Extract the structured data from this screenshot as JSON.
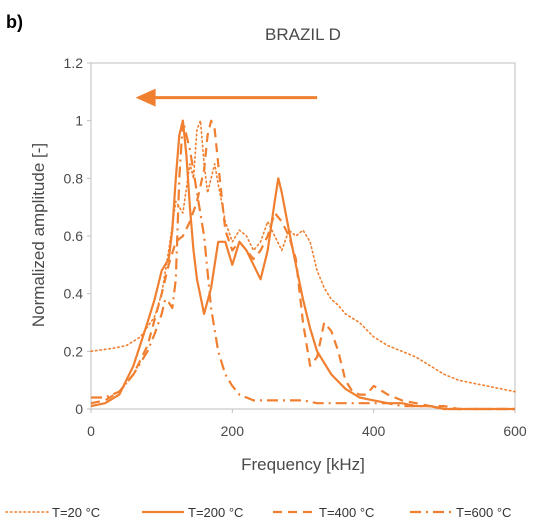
{
  "panel_label": "b)",
  "chart_data": {
    "type": "line",
    "title": "BRAZIL D",
    "xlabel": "Frequency [kHz]",
    "ylabel": "Normalized amplitude [-]",
    "xlim": [
      0,
      600
    ],
    "ylim": [
      0,
      1.2
    ],
    "x_ticks": [
      "0",
      "200",
      "400",
      "600"
    ],
    "y_ticks": [
      "0",
      "0.2",
      "0.4",
      "0.6",
      "0.8",
      "1",
      "1.2"
    ],
    "grid": false,
    "legend_position": "bottom",
    "line_color": "#f07f30",
    "annotation": {
      "type": "arrow",
      "direction": "left",
      "from": [
        320,
        1.08
      ],
      "to": [
        15,
        1.08
      ]
    },
    "series": [
      {
        "name": "T=20 °C",
        "style": "dotted",
        "x": [
          0,
          30,
          50,
          70,
          90,
          100,
          110,
          120,
          130,
          140,
          145,
          150,
          155,
          160,
          165,
          170,
          175,
          180,
          190,
          200,
          210,
          220,
          230,
          240,
          250,
          260,
          270,
          280,
          290,
          300,
          310,
          320,
          330,
          340,
          350,
          360,
          380,
          400,
          420,
          440,
          460,
          480,
          500,
          520,
          540,
          560,
          580,
          600
        ],
        "y": [
          0.2,
          0.21,
          0.22,
          0.25,
          0.32,
          0.4,
          0.55,
          0.72,
          0.68,
          0.85,
          0.8,
          0.97,
          1.0,
          0.85,
          0.75,
          0.8,
          0.85,
          0.78,
          0.65,
          0.58,
          0.62,
          0.6,
          0.55,
          0.58,
          0.65,
          0.6,
          0.55,
          0.62,
          0.6,
          0.62,
          0.58,
          0.48,
          0.42,
          0.38,
          0.36,
          0.33,
          0.3,
          0.25,
          0.22,
          0.2,
          0.18,
          0.15,
          0.12,
          0.1,
          0.09,
          0.08,
          0.07,
          0.06
        ]
      },
      {
        "name": "T=200 °C",
        "style": "solid",
        "x": [
          0,
          20,
          40,
          60,
          80,
          90,
          100,
          110,
          115,
          120,
          125,
          130,
          135,
          140,
          145,
          150,
          160,
          170,
          180,
          190,
          200,
          210,
          220,
          230,
          240,
          250,
          260,
          265,
          270,
          280,
          290,
          300,
          310,
          320,
          340,
          360,
          380,
          400,
          420,
          440,
          460,
          480,
          500,
          520,
          540,
          560,
          580,
          600
        ],
        "y": [
          0.01,
          0.02,
          0.05,
          0.15,
          0.3,
          0.38,
          0.48,
          0.52,
          0.62,
          0.8,
          0.95,
          1.0,
          0.88,
          0.7,
          0.55,
          0.45,
          0.33,
          0.42,
          0.58,
          0.58,
          0.5,
          0.58,
          0.55,
          0.5,
          0.45,
          0.55,
          0.72,
          0.8,
          0.75,
          0.62,
          0.5,
          0.38,
          0.28,
          0.2,
          0.12,
          0.07,
          0.04,
          0.03,
          0.02,
          0.02,
          0.01,
          0.01,
          0.0,
          0.0,
          0.0,
          0.0,
          0.0,
          0.0
        ]
      },
      {
        "name": "T=400 °C",
        "style": "dashed",
        "x": [
          0,
          20,
          40,
          60,
          80,
          100,
          110,
          120,
          130,
          140,
          150,
          160,
          165,
          170,
          175,
          180,
          190,
          200,
          210,
          220,
          230,
          240,
          250,
          260,
          270,
          280,
          290,
          300,
          310,
          320,
          330,
          340,
          350,
          360,
          370,
          380,
          390,
          400,
          420,
          440,
          460,
          480,
          500,
          520,
          540,
          560,
          580,
          600
        ],
        "y": [
          0.02,
          0.03,
          0.06,
          0.12,
          0.22,
          0.4,
          0.5,
          0.58,
          0.6,
          0.65,
          0.72,
          0.83,
          0.95,
          1.0,
          0.97,
          0.85,
          0.62,
          0.55,
          0.58,
          0.55,
          0.52,
          0.55,
          0.6,
          0.68,
          0.65,
          0.6,
          0.52,
          0.3,
          0.15,
          0.18,
          0.3,
          0.27,
          0.2,
          0.1,
          0.06,
          0.05,
          0.05,
          0.08,
          0.05,
          0.03,
          0.02,
          0.01,
          0.01,
          0.0,
          0.0,
          0.0,
          0.0,
          0.0
        ]
      },
      {
        "name": "T=600 °C",
        "style": "dashdot",
        "x": [
          0,
          20,
          40,
          60,
          80,
          90,
          100,
          105,
          110,
          115,
          120,
          125,
          130,
          140,
          150,
          160,
          170,
          180,
          190,
          200,
          210,
          220,
          230,
          240,
          260,
          280,
          300,
          320,
          340,
          360,
          380,
          400,
          420,
          440,
          460,
          480,
          500,
          520,
          540,
          560,
          580,
          600
        ],
        "y": [
          0.04,
          0.04,
          0.06,
          0.12,
          0.2,
          0.26,
          0.33,
          0.38,
          0.37,
          0.35,
          0.45,
          0.8,
          1.0,
          0.9,
          0.75,
          0.6,
          0.35,
          0.2,
          0.12,
          0.08,
          0.05,
          0.04,
          0.03,
          0.03,
          0.03,
          0.03,
          0.03,
          0.02,
          0.02,
          0.02,
          0.02,
          0.02,
          0.02,
          0.01,
          0.01,
          0.01,
          0.0,
          0.0,
          0.0,
          0.0,
          0.0,
          0.0
        ]
      }
    ]
  }
}
